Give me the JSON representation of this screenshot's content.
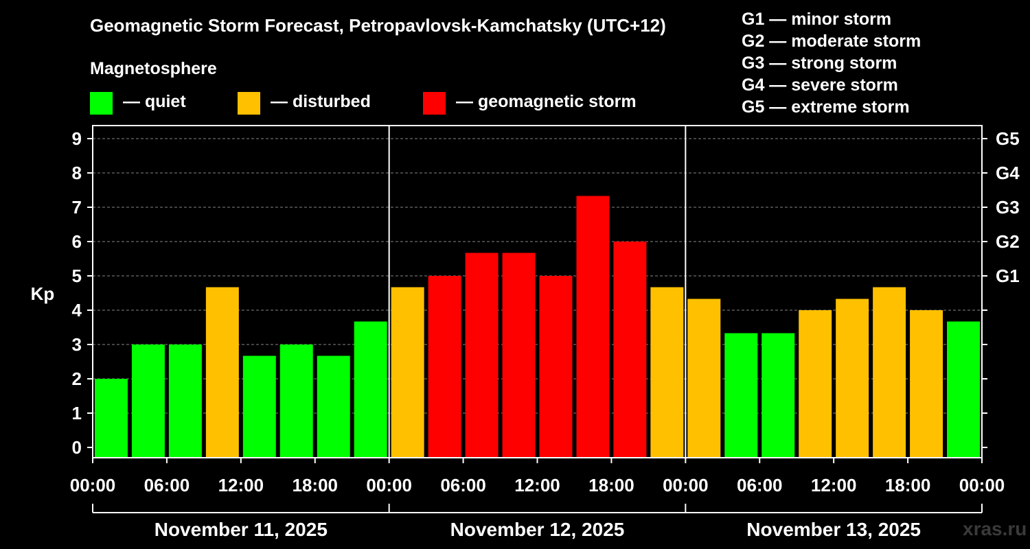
{
  "title": "Geomagnetic Storm Forecast, Petropavlovsk-Kamchatsky (UTC+12)",
  "legend": {
    "heading": "Magnetosphere",
    "items": [
      {
        "label": "— quiet",
        "color": "#00ff00"
      },
      {
        "label": "— disturbed",
        "color": "#ffc000"
      },
      {
        "label": "— geomagnetic storm",
        "color": "#ff0000"
      }
    ]
  },
  "g_scale": [
    {
      "text": "G1 — minor storm"
    },
    {
      "text": "G2 — moderate storm"
    },
    {
      "text": "G3 — strong storm"
    },
    {
      "text": "G4 — severe storm"
    },
    {
      "text": "G5 — extreme storm"
    }
  ],
  "watermark": "xras.ru",
  "colors": {
    "quiet": "#00ff00",
    "disturbed": "#ffc000",
    "storm": "#ff0000",
    "background": "#000000",
    "axis": "#ffffff",
    "grid": "#888888"
  },
  "chart_data": {
    "type": "bar",
    "ylabel": "Kp",
    "ylim": [
      0,
      9
    ],
    "yticks": [
      "0",
      "1",
      "2",
      "3",
      "4",
      "5",
      "6",
      "7",
      "8",
      "9"
    ],
    "right_ticks": [
      {
        "value": 5,
        "label": "G1"
      },
      {
        "value": 6,
        "label": "G2"
      },
      {
        "value": 7,
        "label": "G3"
      },
      {
        "value": 8,
        "label": "G4"
      },
      {
        "value": 9,
        "label": "G5"
      }
    ],
    "grid": "horizontal dashed",
    "xticks": [
      "00:00",
      "06:00",
      "12:00",
      "18:00",
      "00:00",
      "06:00",
      "12:00",
      "18:00",
      "00:00",
      "06:00",
      "12:00",
      "18:00",
      "00:00"
    ],
    "days": [
      "November 11, 2025",
      "November 12, 2025",
      "November 13, 2025"
    ],
    "interval_hours": 3,
    "values": [
      2.0,
      3.0,
      3.0,
      4.67,
      2.67,
      3.0,
      2.67,
      3.67,
      4.67,
      5.0,
      5.67,
      5.67,
      5.0,
      7.33,
      6.0,
      4.67,
      4.33,
      3.33,
      3.33,
      4.0,
      4.33,
      4.67,
      4.0,
      3.67
    ],
    "levels": [
      "quiet",
      "quiet",
      "quiet",
      "disturbed",
      "quiet",
      "quiet",
      "quiet",
      "quiet",
      "disturbed",
      "storm",
      "storm",
      "storm",
      "storm",
      "storm",
      "storm",
      "disturbed",
      "disturbed",
      "quiet",
      "quiet",
      "disturbed",
      "disturbed",
      "disturbed",
      "disturbed",
      "quiet"
    ]
  }
}
